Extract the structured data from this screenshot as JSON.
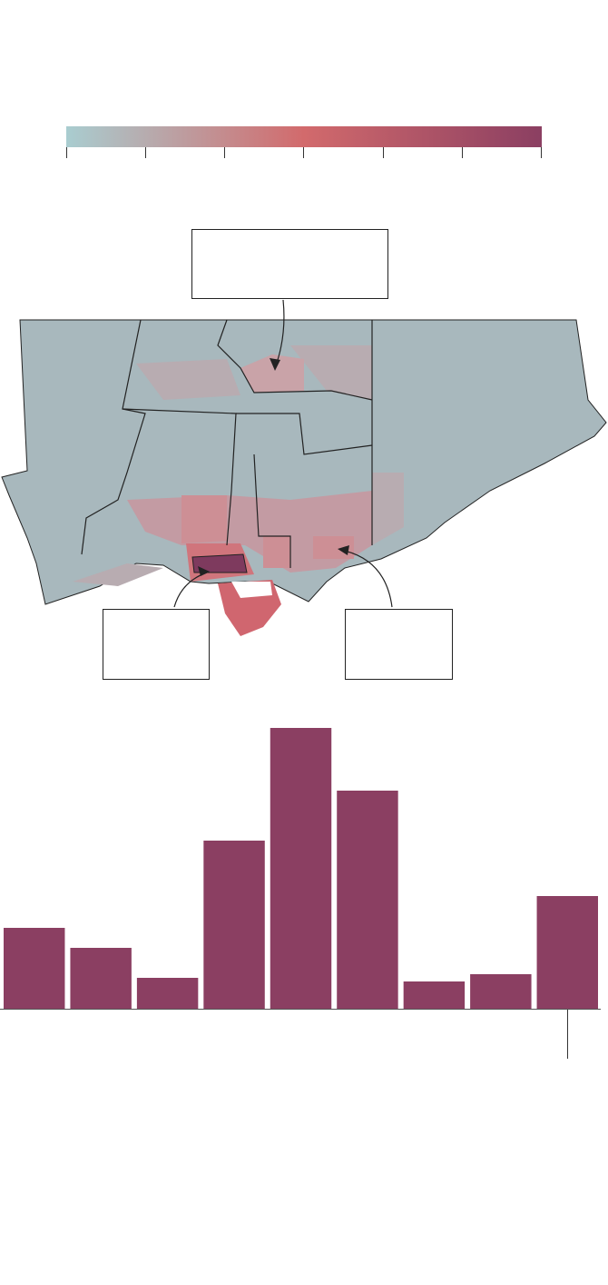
{
  "chart_data": {
    "type": "bar",
    "categories": [
      null,
      null,
      null,
      null,
      null,
      null,
      null,
      null,
      null
    ],
    "values": [
      89,
      67,
      34,
      185,
      309,
      240,
      30,
      38,
      124
    ],
    "color": "#8b3f62"
  }
}
